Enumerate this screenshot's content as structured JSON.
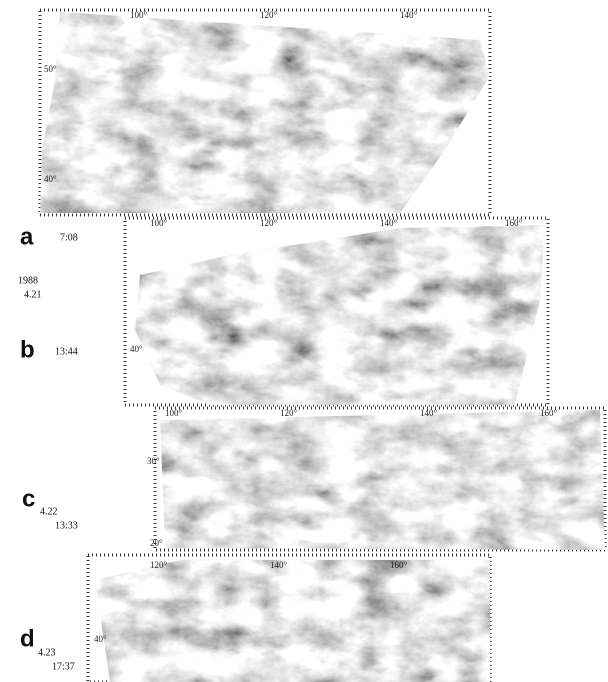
{
  "year": "1988",
  "panels": [
    {
      "label": "a",
      "date": "4.21",
      "time": "7:08",
      "lon_labels": [
        "100°",
        "120°",
        "140°"
      ],
      "lat_labels": [
        "50°",
        "40°"
      ]
    },
    {
      "label": "b",
      "time": "13:44",
      "lon_labels": [
        "100°",
        "120°",
        "140°",
        "160°"
      ],
      "lat_labels": [
        "40°"
      ]
    },
    {
      "label": "c",
      "date": "4.22",
      "time": "13:33",
      "lon_labels": [
        "100°",
        "120°",
        "140°",
        "160°"
      ],
      "lat_labels": [
        "30°",
        "20°"
      ]
    },
    {
      "label": "d",
      "date": "4.23",
      "time": "17:37",
      "lon_labels": [
        "120°",
        "140°",
        "160°"
      ],
      "lat_labels": [
        "40°"
      ]
    }
  ]
}
